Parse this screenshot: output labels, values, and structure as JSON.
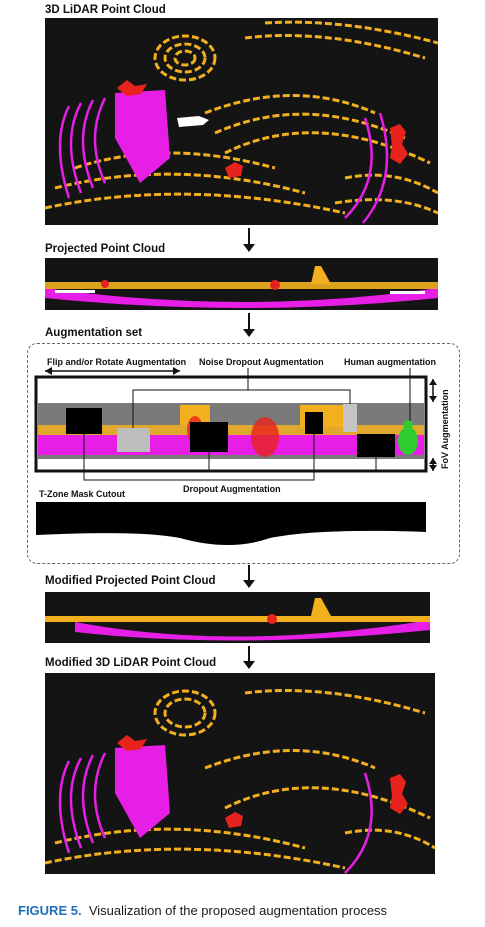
{
  "labels": {
    "lidar_3d": "3D LiDAR Point Cloud",
    "projected": "Projected Point Cloud",
    "augmentation_set": "Augmentation set",
    "flip_rotate": "Flip and/or Rotate Augmentation",
    "noise_dropout": "Noise Dropout Augmentation",
    "human_aug": "Human augmentation",
    "fov_aug": "FoV Augmentation",
    "dropout_aug": "Dropout Augmentation",
    "tzone": "T-Zone Mask Cutout",
    "modified_projected": "Modified Projected Point Cloud",
    "modified_3d": "Modified 3D LiDAR Point Cloud"
  },
  "caption": {
    "figure": "FIGURE 5.",
    "text": "Visualization of the proposed augmentation process"
  },
  "colors": {
    "road": "#e61ee6",
    "vegetation": "#f2b01e",
    "person": "#e8231e",
    "human_aug": "#2ecc2e",
    "background": "#141414"
  }
}
